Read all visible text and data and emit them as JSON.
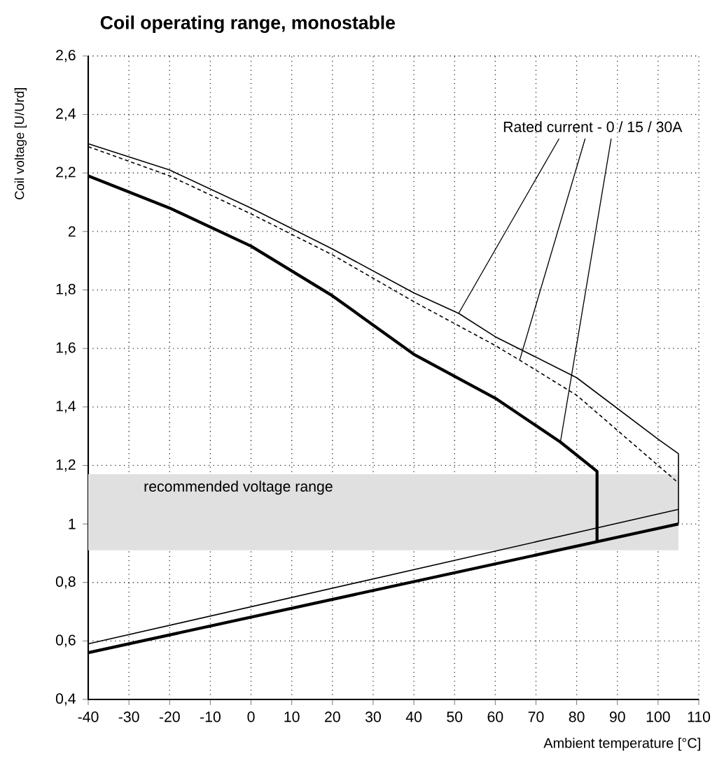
{
  "chart_data": {
    "type": "line",
    "title": "Coil operating range, monostable",
    "xlabel": "Ambient temperature [°C]",
    "ylabel": "Coil voltage [U/Urd]",
    "annotations": [
      {
        "text": "Rated current - 0 / 15 / 30A",
        "x": 51,
        "y": 1.72
      }
    ],
    "xlim": [
      -40,
      110
    ],
    "xticks": [
      -40,
      -30,
      -20,
      -10,
      0,
      10,
      20,
      30,
      40,
      50,
      60,
      70,
      80,
      90,
      100,
      110
    ],
    "ylim": [
      0.4,
      2.6
    ],
    "yticks": [
      {
        "value": 0.4,
        "label": "0,4"
      },
      {
        "value": 0.6,
        "label": "0,6"
      },
      {
        "value": 0.8,
        "label": "0,8"
      },
      1,
      {
        "value": 1.2,
        "label": "1,2"
      },
      {
        "value": 1.4,
        "label": "1,4"
      },
      {
        "value": 1.6,
        "label": "1,6"
      },
      {
        "value": 1.8,
        "label": "1,8"
      },
      2,
      {
        "value": 2.2,
        "label": "2,2"
      },
      {
        "value": 2.4,
        "label": "2,4"
      },
      {
        "value": 2.6,
        "label": "2,6"
      }
    ],
    "grid": true,
    "bands": [
      {
        "axis": "y",
        "from": 0.91,
        "to": 1.17,
        "label": "recommended voltage range",
        "color": "#e0e0e0"
      }
    ],
    "series": [
      {
        "color": "#000000",
        "line_style": "solid",
        "x": [
          -40,
          -20,
          0,
          20,
          40,
          51,
          60,
          80,
          100,
          105,
          105
        ],
        "values": [
          2.3,
          2.21,
          2.08,
          1.94,
          1.79,
          1.72,
          1.64,
          1.5,
          1.29,
          1.24,
          1.0
        ]
      },
      {
        "color": "#000000",
        "line_style": "dashed",
        "x": [
          -40,
          -20,
          0,
          20,
          40,
          60,
          66,
          80,
          100,
          105
        ],
        "values": [
          2.29,
          2.19,
          2.06,
          1.92,
          1.76,
          1.61,
          1.56,
          1.44,
          1.2,
          1.14
        ]
      },
      {
        "color": "#000000",
        "line_style": "solid",
        "x": [
          -40,
          -20,
          0,
          20,
          40,
          60,
          76,
          85,
          85
        ],
        "values": [
          2.19,
          2.08,
          1.95,
          1.78,
          1.58,
          1.43,
          1.28,
          1.18,
          0.94
        ]
      },
      {
        "color": "#000000",
        "line_style": "solid",
        "x": [
          -40,
          105
        ],
        "values": [
          0.59,
          1.05
        ]
      },
      {
        "color": "#000000",
        "line_style": "solid",
        "x": [
          -40,
          105
        ],
        "values": [
          0.56,
          1.0
        ]
      }
    ]
  }
}
